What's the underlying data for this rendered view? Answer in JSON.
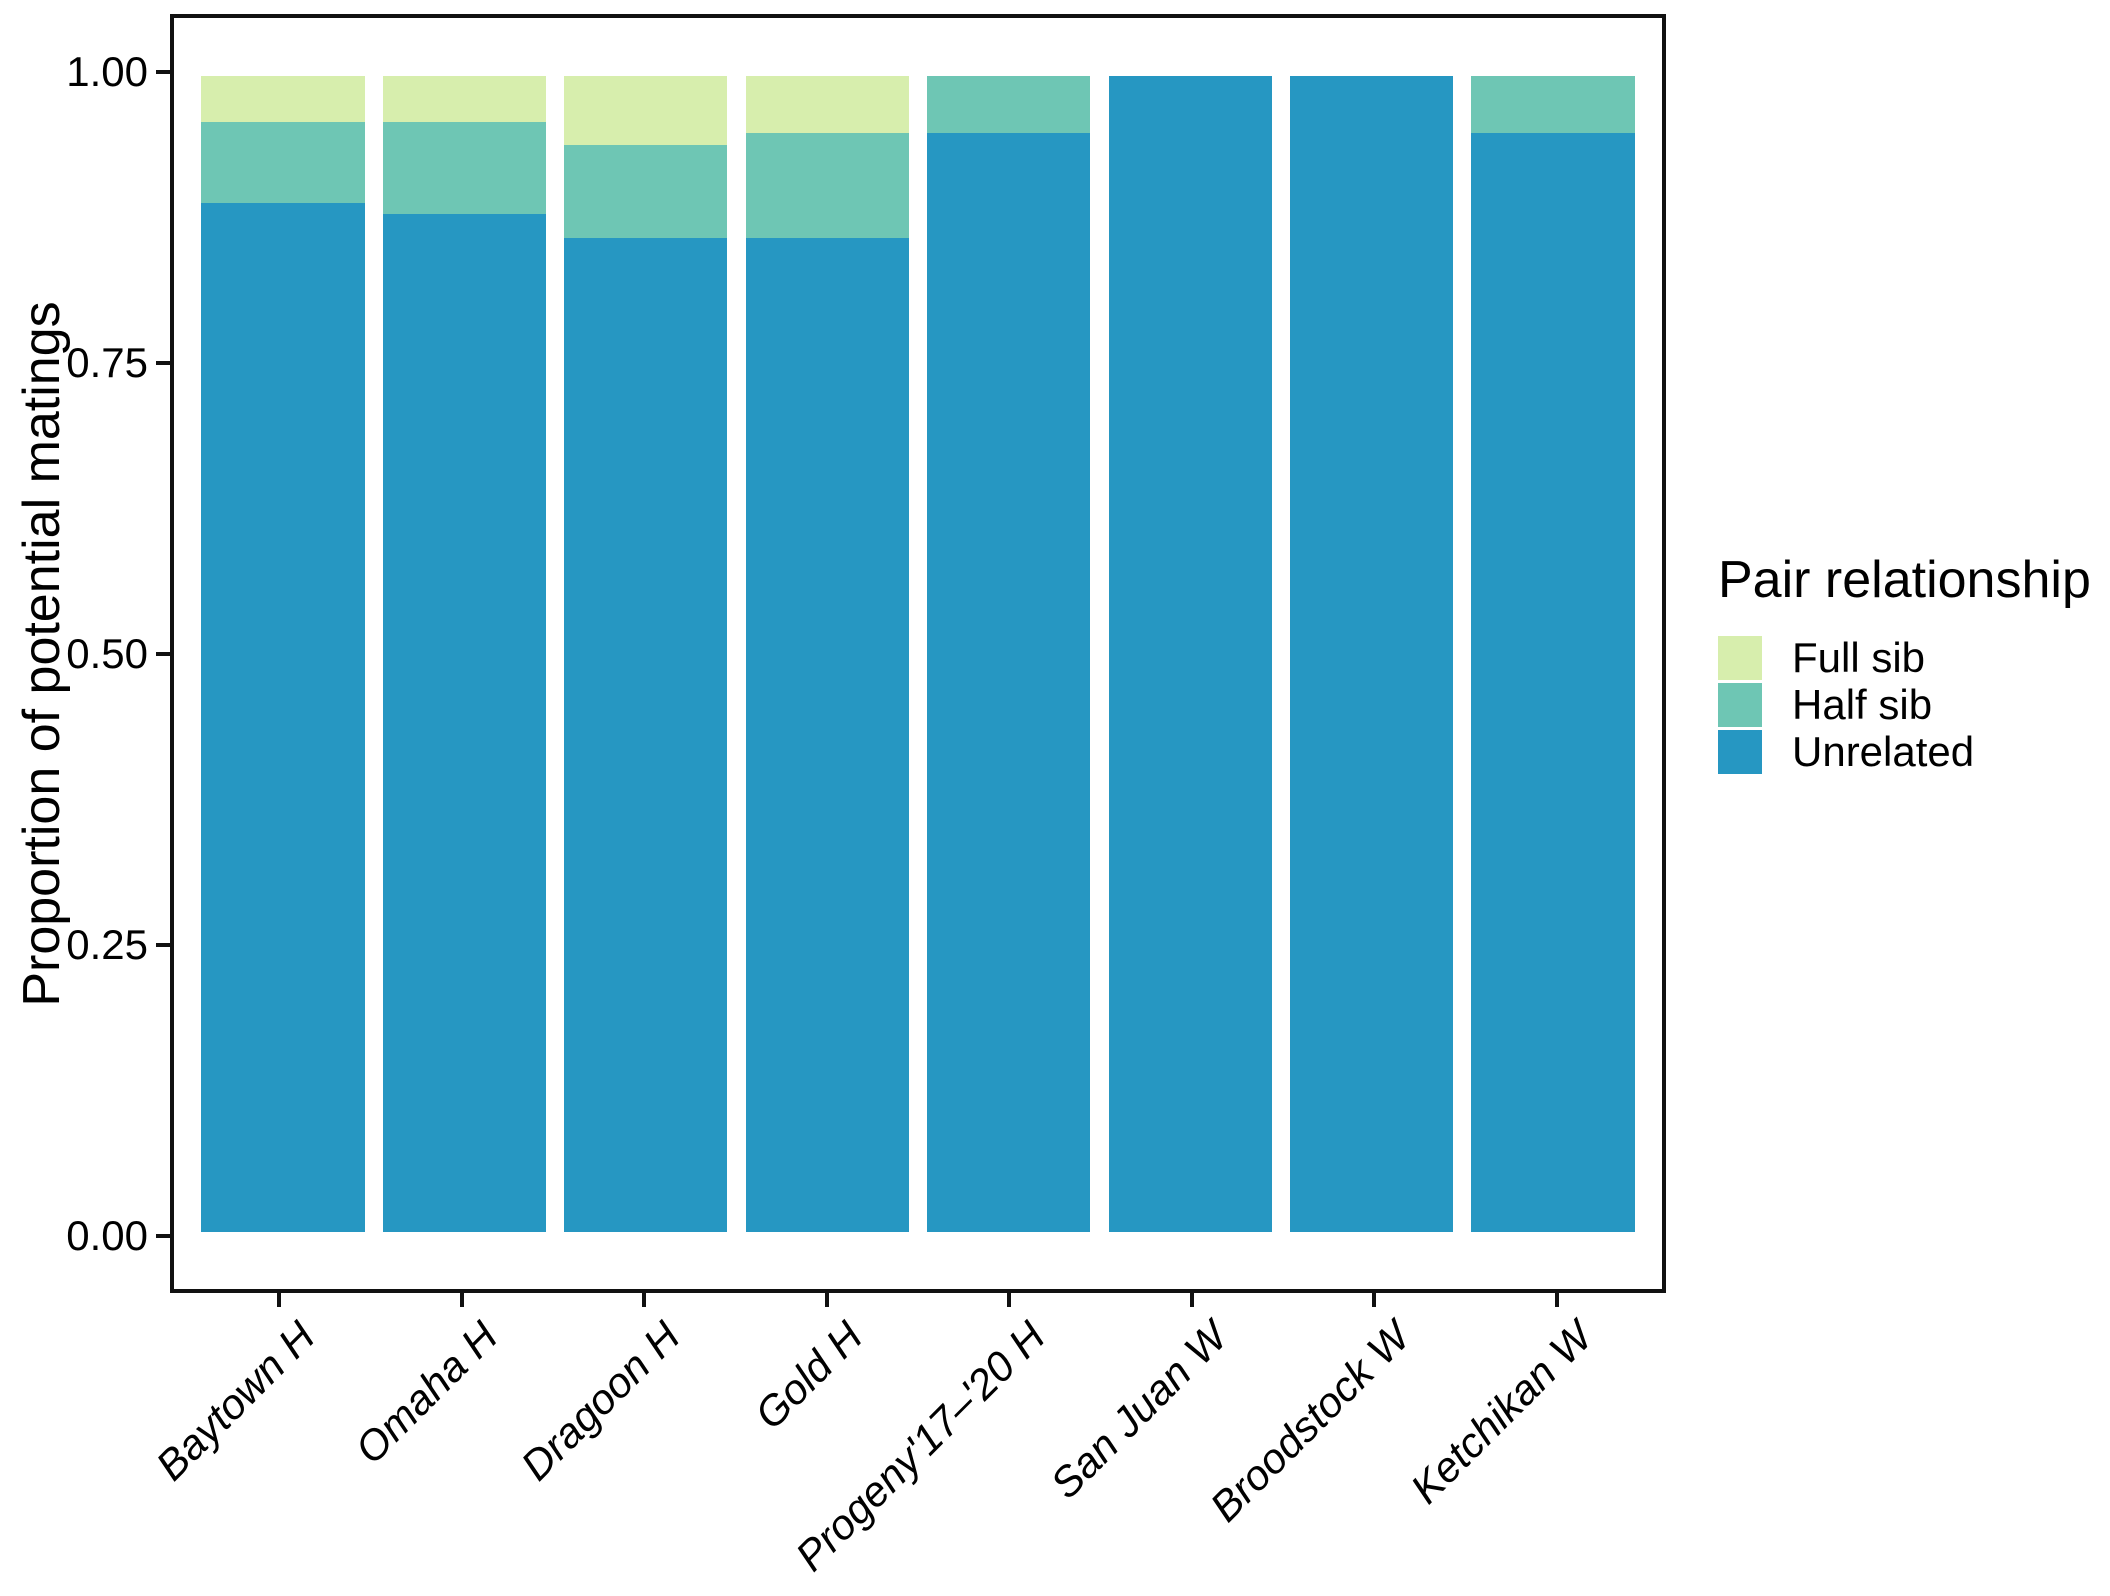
{
  "chart_data": {
    "type": "bar",
    "stacked": true,
    "title": "",
    "xlabel": "",
    "ylabel": "Proportion of potential matings",
    "ylim": [
      0,
      1
    ],
    "grid": false,
    "yticks": [
      {
        "value": 0.0,
        "label": "0.00"
      },
      {
        "value": 0.25,
        "label": "0.25"
      },
      {
        "value": 0.5,
        "label": "0.50"
      },
      {
        "value": 0.75,
        "label": "0.75"
      },
      {
        "value": 1.0,
        "label": "1.00"
      }
    ],
    "categories": [
      "Baytown H",
      "Omaha H",
      "Dragoon H",
      "Gold H",
      "Progeny'17–'20 H",
      "San Juan W",
      "Broodstock W",
      "Ketchikan W"
    ],
    "series": [
      {
        "name": "Full sib",
        "color": "#d7eead",
        "values": [
          0.04,
          0.04,
          0.06,
          0.05,
          0.0,
          0.0,
          0.0,
          0.0
        ]
      },
      {
        "name": "Half sib",
        "color": "#6ec6b4",
        "values": [
          0.07,
          0.08,
          0.08,
          0.09,
          0.05,
          0.0,
          0.0,
          0.05
        ]
      },
      {
        "name": "Unrelated",
        "color": "#2697c2",
        "values": [
          0.89,
          0.88,
          0.86,
          0.86,
          0.95,
          1.0,
          1.0,
          0.95
        ]
      }
    ],
    "legend": {
      "title": "Pair relationship",
      "position": "right"
    }
  }
}
